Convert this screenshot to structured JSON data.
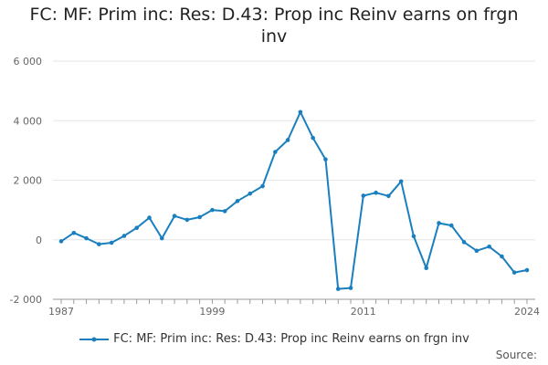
{
  "title_line1": "FC: MF: Prim inc: Res: D.43: Prop inc Reinv earns on frgn",
  "title_line2": "inv",
  "source_label": "Source:",
  "colors": {
    "series": "#1a7fbf",
    "grid": "#e6e6e6",
    "axis": "#999999"
  },
  "chart_data": {
    "type": "line",
    "title": "FC: MF: Prim inc: Res: D.43: Prop inc Reinv earns on frgn inv",
    "xlabel": "",
    "ylabel": "",
    "xlim": [
      1987,
      2024
    ],
    "ylim": [
      -2000,
      6000
    ],
    "x_tick_labels": [
      "1987",
      "1999",
      "2011",
      "2024"
    ],
    "y_ticks": [
      -2000,
      0,
      2000,
      4000,
      6000
    ],
    "y_tick_labels": [
      "-2 000",
      "0",
      "2 000",
      "4 000",
      "6 000"
    ],
    "grid": true,
    "legend_position": "bottom",
    "series": [
      {
        "name": "FC: MF: Prim inc: Res: D.43: Prop inc Reinv earns on frgn inv",
        "x": [
          1987,
          1988,
          1989,
          1990,
          1991,
          1992,
          1993,
          1994,
          1995,
          1996,
          1997,
          1998,
          1999,
          2000,
          2001,
          2002,
          2003,
          2004,
          2005,
          2006,
          2007,
          2008,
          2009,
          2010,
          2011,
          2012,
          2013,
          2014,
          2015,
          2016,
          2017,
          2018,
          2019,
          2020,
          2021,
          2022,
          2023,
          2024
        ],
        "values": [
          -50,
          230,
          50,
          -150,
          -100,
          130,
          400,
          740,
          50,
          800,
          670,
          760,
          1000,
          960,
          1300,
          1550,
          1800,
          2950,
          3350,
          4290,
          3420,
          2700,
          -1650,
          -1620,
          1480,
          1580,
          1470,
          1960,
          120,
          -950,
          560,
          480,
          -80,
          -370,
          -230,
          -560,
          -1100,
          -1020
        ]
      }
    ]
  }
}
